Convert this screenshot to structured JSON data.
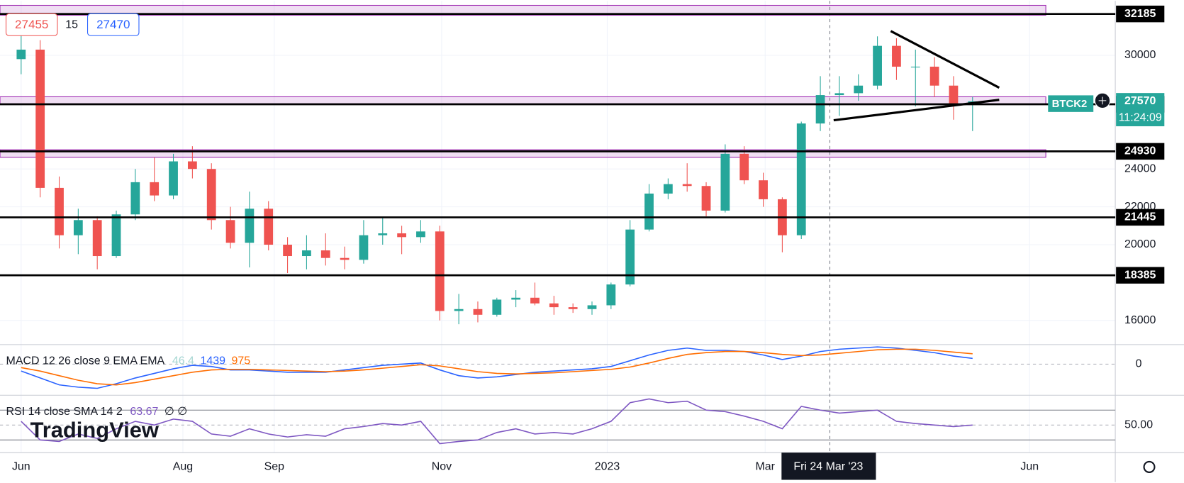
{
  "ui": {
    "bid": 27455,
    "spread": 15,
    "ask": 27470,
    "countdown": "11:24:09",
    "crosshair_date": "Fri 24 Mar '23",
    "watermark": "TradingView",
    "symbol_tag": "BTCK2"
  },
  "chart_data": [
    {
      "type": "candlestick",
      "ohlc": [
        [
          29800,
          31500,
          29000,
          30300
        ],
        [
          30300,
          30800,
          22500,
          23000
        ],
        [
          23000,
          23600,
          19800,
          20500
        ],
        [
          20500,
          21900,
          19500,
          21300
        ],
        [
          21300,
          21500,
          18700,
          19400
        ],
        [
          19400,
          21800,
          19300,
          21600
        ],
        [
          21600,
          24000,
          21300,
          23300
        ],
        [
          23300,
          24600,
          22300,
          22600
        ],
        [
          22600,
          24800,
          22400,
          24400
        ],
        [
          24400,
          25200,
          23500,
          24000
        ],
        [
          24000,
          24300,
          20800,
          21300
        ],
        [
          21300,
          22000,
          19800,
          20100
        ],
        [
          20100,
          22800,
          18800,
          21900
        ],
        [
          21900,
          22300,
          19700,
          20000
        ],
        [
          20000,
          20400,
          18500,
          19400
        ],
        [
          19400,
          20500,
          18700,
          19700
        ],
        [
          19700,
          20600,
          18900,
          19300
        ],
        [
          19300,
          19900,
          18700,
          19200
        ],
        [
          19200,
          21300,
          19000,
          20500
        ],
        [
          20500,
          21400,
          20000,
          20600
        ],
        [
          20600,
          21000,
          19500,
          20400
        ],
        [
          20400,
          21300,
          20100,
          20700
        ],
        [
          20700,
          21000,
          16000,
          16500
        ],
        [
          16500,
          17400,
          15800,
          16600
        ],
        [
          16600,
          17000,
          15900,
          16300
        ],
        [
          16300,
          17200,
          16200,
          17100
        ],
        [
          17100,
          17600,
          16700,
          17200
        ],
        [
          17200,
          18000,
          16800,
          16900
        ],
        [
          16900,
          17300,
          16300,
          16700
        ],
        [
          16700,
          16900,
          16400,
          16600
        ],
        [
          16600,
          17000,
          16300,
          16800
        ],
        [
          16800,
          18000,
          16600,
          17900
        ],
        [
          17900,
          21300,
          17800,
          20800
        ],
        [
          20800,
          23200,
          20700,
          22700
        ],
        [
          22700,
          23500,
          22400,
          23200
        ],
        [
          23200,
          24300,
          22800,
          23100
        ],
        [
          23100,
          23300,
          21500,
          21800
        ],
        [
          21800,
          25300,
          21700,
          24800
        ],
        [
          24800,
          25200,
          23200,
          23400
        ],
        [
          23400,
          23800,
          22000,
          22400
        ],
        [
          22400,
          22500,
          19600,
          20500
        ],
        [
          20500,
          26500,
          20300,
          26400
        ],
        [
          26400,
          28900,
          26000,
          27900
        ],
        [
          27900,
          28900,
          26800,
          28000
        ],
        [
          28000,
          29000,
          27600,
          28400
        ],
        [
          28400,
          31000,
          28200,
          30500
        ],
        [
          30500,
          30900,
          28700,
          29400
        ],
        [
          29400,
          30300,
          27300,
          29400
        ],
        [
          29400,
          29900,
          27800,
          28400
        ],
        [
          28400,
          28900,
          26600,
          27400
        ],
        [
          27400,
          27800,
          26000,
          27570
        ]
      ],
      "colors": {
        "up": "#26a69a",
        "down": "#ef5350"
      },
      "ylim": [
        14724,
        32873
      ],
      "yticks": [
        16000,
        20000,
        22000,
        24000,
        30000
      ],
      "xticks": [
        {
          "value": 0,
          "label": "Jun"
        },
        {
          "value": 8.5,
          "label": "Aug"
        },
        {
          "value": 13.3,
          "label": "Sep"
        },
        {
          "value": 22.1,
          "label": "Nov"
        },
        {
          "value": 30.8,
          "label": "2023"
        },
        {
          "value": 39.1,
          "label": "Mar"
        },
        {
          "value": 53,
          "label": "Jun"
        }
      ],
      "levels": [
        32185,
        27415,
        24930,
        21445,
        18385
      ],
      "last_price": 27570,
      "zones": [
        [
          32120,
          32640
        ],
        [
          27410,
          27810
        ],
        [
          24615,
          25015
        ]
      ],
      "trendlines": [
        [
          [
            45.7,
            31280
          ],
          [
            51.4,
            28290
          ]
        ],
        [
          [
            42.7,
            26570
          ],
          [
            51.4,
            27650
          ]
        ]
      ],
      "crosshair_x": 42.5
    },
    {
      "type": "line",
      "title": "MACD 12 26 close 9 EMA EMA",
      "legend_values": [
        {
          "value": 46.4,
          "color": "#a5d6d2"
        },
        {
          "value": 1439,
          "color": "#2962ff"
        },
        {
          "value": 975,
          "color": "#ff6d00"
        }
      ],
      "series": [
        {
          "color": "#2962ff",
          "values": [
            -600,
            -1200,
            -1800,
            -2000,
            -2100,
            -1700,
            -1200,
            -800,
            -400,
            -100,
            -200,
            -500,
            -500,
            -600,
            -700,
            -700,
            -700,
            -500,
            -300,
            -100,
            0,
            100,
            -500,
            -1000,
            -1200,
            -1100,
            -900,
            -700,
            -600,
            -500,
            -400,
            -200,
            300,
            800,
            1200,
            1400,
            1200,
            1200,
            1100,
            800,
            400,
            700,
            1100,
            1300,
            1400,
            1500,
            1400,
            1200,
            1000,
            700,
            500
          ]
        },
        {
          "color": "#ff6d00",
          "values": [
            -300,
            -600,
            -1000,
            -1400,
            -1700,
            -1800,
            -1600,
            -1300,
            -1000,
            -700,
            -500,
            -450,
            -450,
            -500,
            -550,
            -600,
            -650,
            -600,
            -500,
            -350,
            -200,
            -50,
            -150,
            -400,
            -650,
            -800,
            -850,
            -800,
            -750,
            -650,
            -550,
            -450,
            -250,
            100,
            500,
            850,
            1000,
            1100,
            1100,
            1000,
            850,
            750,
            800,
            950,
            1100,
            1250,
            1300,
            1300,
            1200,
            1050,
            900
          ]
        }
      ],
      "ylim": [
        -2700,
        1700
      ],
      "yticks": [
        0
      ]
    },
    {
      "type": "line",
      "title": "RSI 14 close SMA 14 2",
      "legend_value": 63.67,
      "legend_extra": "∅ ∅",
      "series": [
        {
          "color": "#7e57c2",
          "values": [
            55,
            30,
            28,
            38,
            32,
            45,
            55,
            50,
            58,
            55,
            38,
            35,
            45,
            38,
            34,
            37,
            35,
            45,
            48,
            52,
            50,
            55,
            25,
            28,
            30,
            40,
            45,
            38,
            40,
            38,
            45,
            55,
            80,
            85,
            80,
            82,
            70,
            68,
            62,
            55,
            45,
            75,
            70,
            66,
            68,
            70,
            55,
            52,
            50,
            48,
            50
          ]
        }
      ],
      "ylim": [
        13,
        90
      ],
      "yticks": [
        {
          "value": 50,
          "label": "50.00"
        }
      ],
      "bands": [
        30,
        70
      ]
    }
  ]
}
